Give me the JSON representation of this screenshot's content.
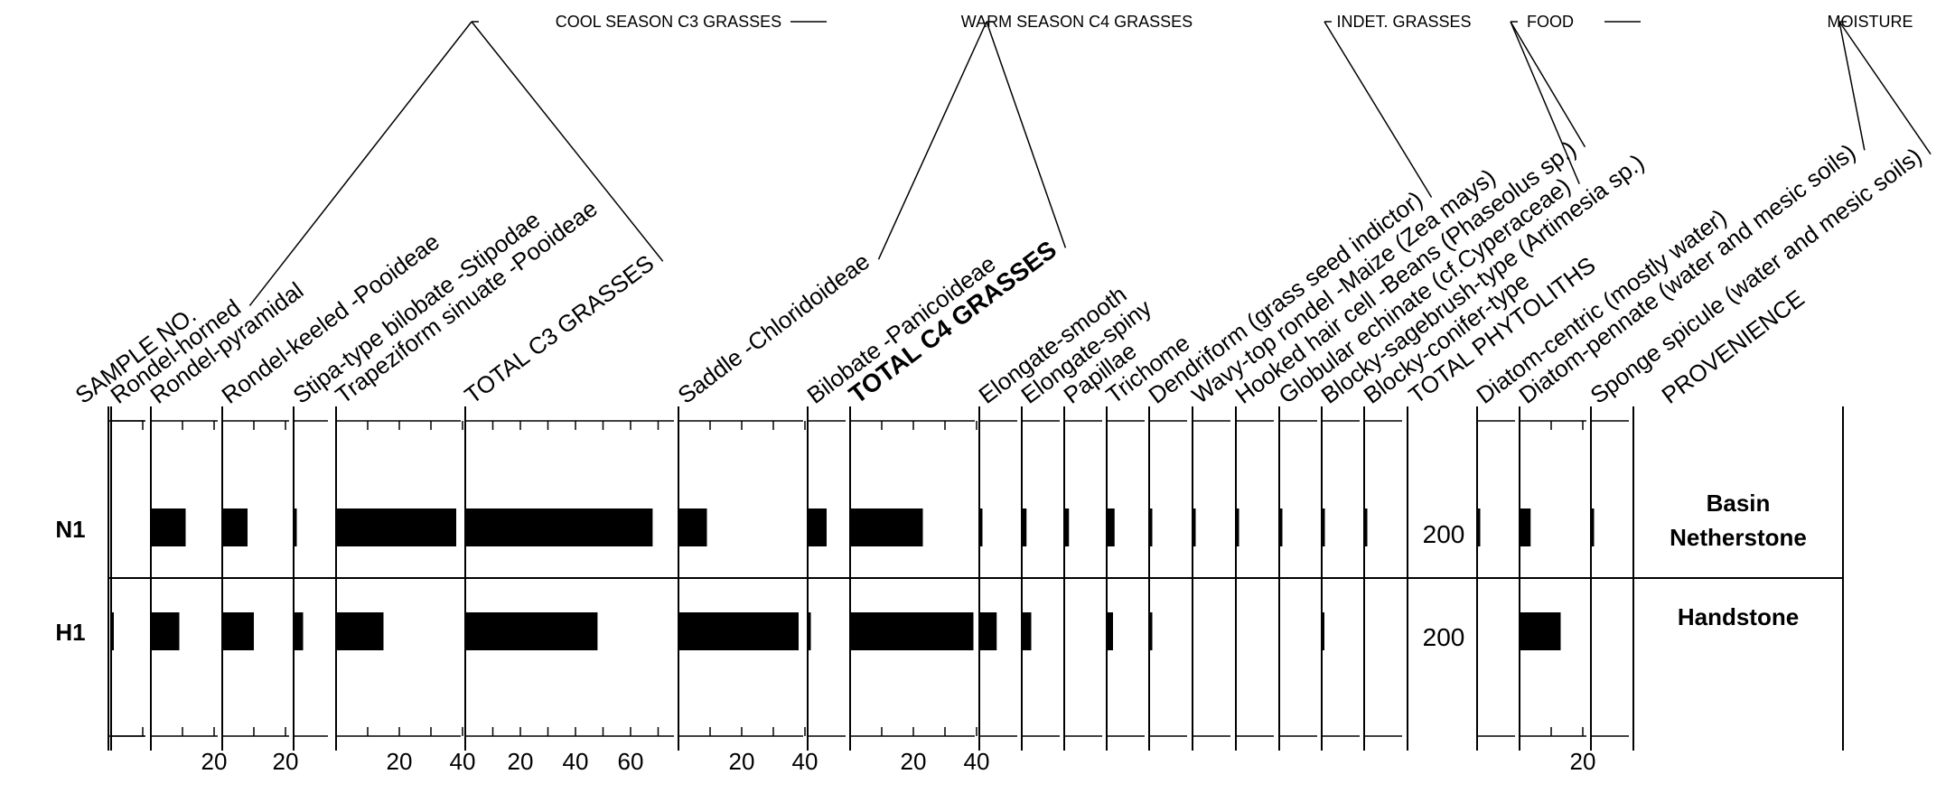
{
  "chart_data": {
    "type": "bar",
    "title": "",
    "groups": [
      {
        "label": "COOL SEASON C3 GRASSES"
      },
      {
        "label": "WARM SEASON C4 GRASSES"
      },
      {
        "label": "INDET. GRASSES"
      },
      {
        "label": "FOOD"
      },
      {
        "label": "MOISTURE"
      }
    ],
    "header_columns": {
      "sample": "SAMPLE NO.",
      "total_phytoliths": "TOTAL PHYTOLITHS",
      "provenience": "PROVENIENCE"
    },
    "categories": [
      {
        "label": "Rondel-horned",
        "group": 0
      },
      {
        "label": "Rondel-pyramidal",
        "group": 0
      },
      {
        "label": "Rondel-keeled -Pooideae",
        "group": 0
      },
      {
        "label": "Stipa-type bilobate -Stipodae",
        "group": 0
      },
      {
        "label": "Trapeziform sinuate -Pooideae",
        "group": 0
      },
      {
        "label": "TOTAL C3 GRASSES",
        "group": 0
      },
      {
        "label": "Saddle -Chloridoideae",
        "group": 1
      },
      {
        "label": "Bilobate -Panicoideae",
        "group": 1
      },
      {
        "label": "TOTAL C4 GRASSES",
        "group": 1
      },
      {
        "label": "Elongate-smooth",
        "group": 2
      },
      {
        "label": "Elongate-spiny",
        "group": 2
      },
      {
        "label": "Papillae",
        "group": 2
      },
      {
        "label": "Trichome",
        "group": 2
      },
      {
        "label": "Dendriform (grass seed indictor)",
        "group": 2
      },
      {
        "label": "Wavy-top rondel -Maize (Zea mays)",
        "group": 3
      },
      {
        "label": "Hooked hair cell -Beans (Phaseolus sp.)",
        "group": 3
      },
      {
        "label": "Globular echinate (cf.Cyperaceae)",
        "group": 4
      },
      {
        "label": "Blocky-sagebrush-type (Artimesia sp.)",
        "group": 4
      },
      {
        "label": "Blocky-conifer-type",
        "group": 4
      },
      {
        "label": "Diatom-centric (mostly water)",
        "group": 4
      },
      {
        "label": "Diatom-pennate (water and mesic soils)",
        "group": 4
      },
      {
        "label": "Sponge spicule (water and mesic soils)",
        "group": 4
      }
    ],
    "axis_ticks": [
      [
        "0",
        "10"
      ],
      [
        "0",
        "10",
        "20"
      ],
      [
        "0",
        "10",
        "20"
      ],
      [
        "0"
      ],
      [
        "0",
        "10",
        "20",
        "30",
        "40"
      ],
      [
        "0",
        "10",
        "20",
        "30",
        "40",
        "50",
        "60",
        "70"
      ],
      [
        "0",
        "10",
        "20",
        "30",
        "40"
      ],
      [
        "0"
      ],
      [
        "0",
        "10",
        "20",
        "30",
        "40"
      ],
      [
        "0"
      ],
      [
        "0"
      ],
      [
        "0"
      ],
      [
        "0"
      ],
      [
        "0"
      ],
      [
        "0"
      ],
      [
        "0"
      ],
      [
        "0"
      ],
      [
        "0"
      ],
      [
        "0"
      ],
      [
        "0"
      ],
      [
        "0",
        "10",
        "20"
      ],
      [
        "0"
      ]
    ],
    "axis_labels_printed": [
      [],
      [
        "20"
      ],
      [
        "20"
      ],
      [],
      [
        "20",
        "40"
      ],
      [
        "20",
        "40",
        "60"
      ],
      [
        "20",
        "40"
      ],
      [],
      [
        "20",
        "40"
      ],
      [],
      [],
      [],
      [],
      [],
      [],
      [],
      [],
      [],
      [],
      [],
      [
        "20"
      ],
      []
    ],
    "series": [
      {
        "sample": "N1",
        "provenience": "Basin Netherstone",
        "total_phytoliths": "200",
        "values": [
          0,
          11,
          8,
          1,
          38,
          68,
          9,
          6,
          23,
          1,
          1.5,
          1.5,
          2.5,
          1,
          1,
          1,
          1,
          1,
          1,
          1,
          3.5,
          1
        ]
      },
      {
        "sample": "H1",
        "provenience": "Handstone",
        "total_phytoliths": "200",
        "values": [
          0.5,
          9,
          10,
          3,
          15,
          48,
          38,
          1,
          39,
          5.5,
          3,
          0,
          2,
          1,
          0,
          0,
          0,
          0.5,
          0,
          0,
          13,
          0
        ]
      }
    ]
  }
}
